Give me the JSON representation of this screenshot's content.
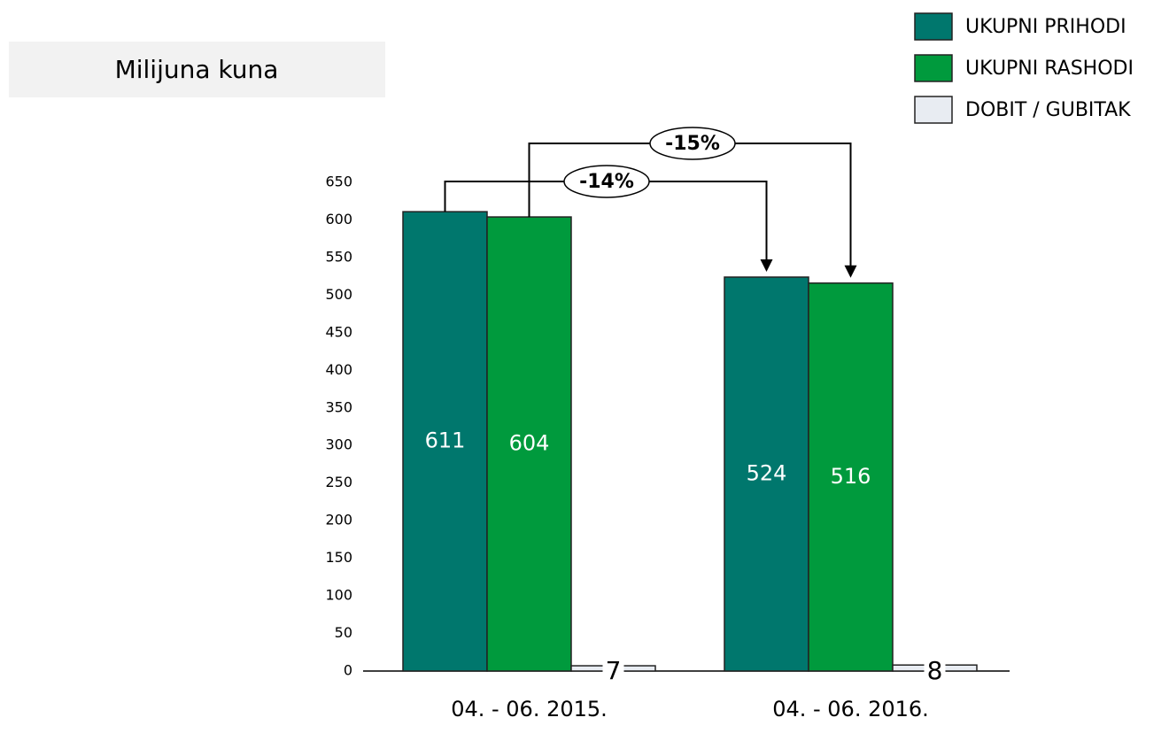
{
  "chart_data": {
    "type": "bar",
    "unit_label": "Milijuna kuna",
    "categories": [
      "04. - 06. 2015.",
      "04. - 06. 2016."
    ],
    "series": [
      {
        "name": "UKUPNI PRIHODI",
        "color": "#00776d",
        "values": [
          611,
          524
        ]
      },
      {
        "name": "UKUPNI RASHODI",
        "color": "#009a3d",
        "values": [
          604,
          516
        ]
      },
      {
        "name": "DOBIT / GUBITAK",
        "color": "#e8ecf2",
        "values": [
          7,
          8
        ]
      }
    ],
    "ylim": [
      0,
      650
    ],
    "yticks": [
      0,
      50,
      100,
      150,
      200,
      250,
      300,
      350,
      400,
      450,
      500,
      550,
      600,
      650
    ],
    "grid": false,
    "legend": "top-right",
    "annotations": [
      "-14%",
      "-15%"
    ]
  }
}
